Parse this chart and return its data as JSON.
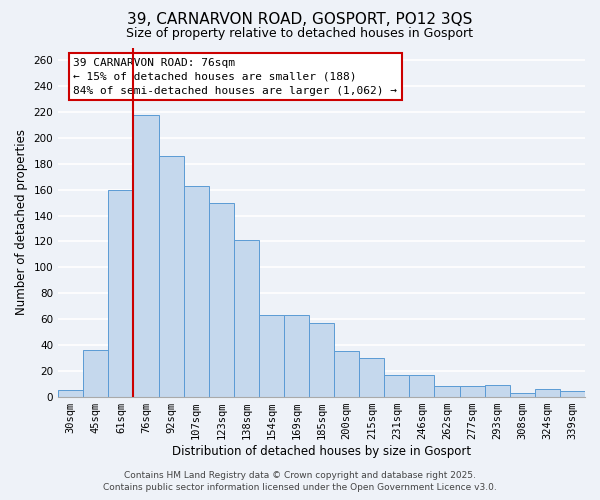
{
  "title": "39, CARNARVON ROAD, GOSPORT, PO12 3QS",
  "subtitle": "Size of property relative to detached houses in Gosport",
  "xlabel": "Distribution of detached houses by size in Gosport",
  "ylabel": "Number of detached properties",
  "categories": [
    "30sqm",
    "45sqm",
    "61sqm",
    "76sqm",
    "92sqm",
    "107sqm",
    "123sqm",
    "138sqm",
    "154sqm",
    "169sqm",
    "185sqm",
    "200sqm",
    "215sqm",
    "231sqm",
    "246sqm",
    "262sqm",
    "277sqm",
    "293sqm",
    "308sqm",
    "324sqm",
    "339sqm"
  ],
  "values": [
    5,
    36,
    160,
    218,
    186,
    163,
    150,
    121,
    63,
    63,
    57,
    35,
    30,
    17,
    17,
    8,
    8,
    9,
    3,
    6,
    4
  ],
  "bar_color": "#c5d8ed",
  "bar_edge_color": "#5b9bd5",
  "redline_index": 3,
  "annotation_title": "39 CARNARVON ROAD: 76sqm",
  "annotation_line1": "← 15% of detached houses are smaller (188)",
  "annotation_line2": "84% of semi-detached houses are larger (1,062) →",
  "annotation_box_color": "#ffffff",
  "annotation_box_edge": "#cc0000",
  "redline_color": "#cc0000",
  "ylim": [
    0,
    270
  ],
  "yticks": [
    0,
    20,
    40,
    60,
    80,
    100,
    120,
    140,
    160,
    180,
    200,
    220,
    240,
    260
  ],
  "footer_line1": "Contains HM Land Registry data © Crown copyright and database right 2025.",
  "footer_line2": "Contains public sector information licensed under the Open Government Licence v3.0.",
  "background_color": "#eef2f8",
  "grid_color": "#ffffff",
  "title_fontsize": 11,
  "subtitle_fontsize": 9,
  "axis_label_fontsize": 8.5,
  "tick_fontsize": 7.5,
  "annotation_fontsize": 8,
  "footer_fontsize": 6.5
}
